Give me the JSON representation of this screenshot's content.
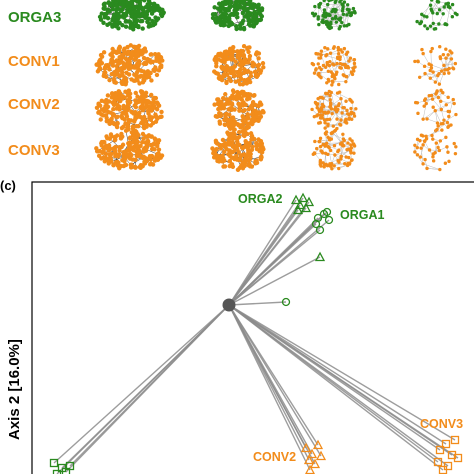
{
  "panel_a": {
    "rows": [
      {
        "label": "ORGA3",
        "color": "#2a8a1f"
      },
      {
        "label": "CONV1",
        "color": "#f28c1b"
      },
      {
        "label": "CONV2",
        "color": "#f28c1b"
      },
      {
        "label": "CONV3",
        "color": "#f28c1b"
      }
    ]
  },
  "panel_c": {
    "tag": "(c)",
    "ylabel": "Axis 2 [16.0%]",
    "groups": [
      {
        "label": "ORGA2",
        "color": "#2a8a1f"
      },
      {
        "label": "ORGA1",
        "color": "#2a8a1f"
      },
      {
        "label": "CONV3",
        "color": "#f28c1b"
      },
      {
        "label": "CONV2",
        "color": "#f28c1b"
      }
    ]
  },
  "colors": {
    "orga": "#2a8a1f",
    "conv": "#f28c1b",
    "line": "#8c8c8c",
    "center": "#555555"
  }
}
